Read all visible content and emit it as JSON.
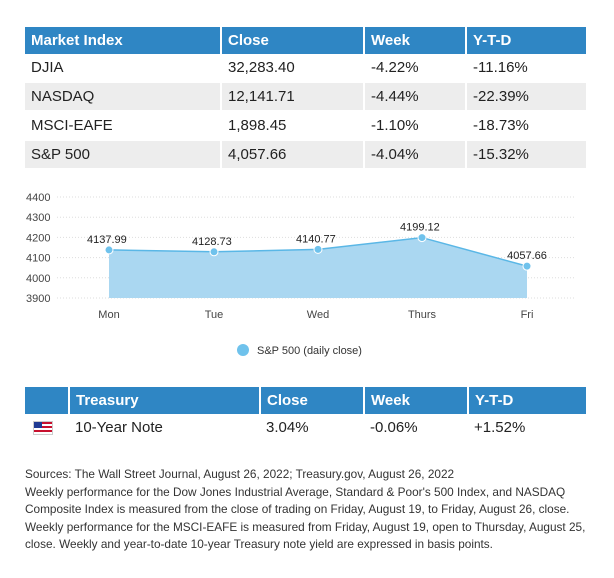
{
  "market_table": {
    "headers": [
      "Market Index",
      "Close",
      "Week",
      "Y-T-D"
    ],
    "rows": [
      [
        "DJIA",
        "32,283.40",
        "-4.22%",
        "-11.16%"
      ],
      [
        "NASDAQ",
        "12,141.71",
        "-4.44%",
        "-22.39%"
      ],
      [
        "MSCI-EAFE",
        "1,898.45",
        "-1.10%",
        "-18.73%"
      ],
      [
        "S&P 500",
        "4,057.66",
        "-4.04%",
        "-15.32%"
      ]
    ]
  },
  "chart_data": {
    "type": "area",
    "categories": [
      "Mon",
      "Tue",
      "Wed",
      "Thurs",
      "Fri"
    ],
    "series": [
      {
        "name": "S&P 500 (daily close)",
        "values": [
          4137.99,
          4128.73,
          4140.77,
          4199.12,
          4057.66
        ]
      }
    ],
    "data_labels": [
      "4137.99",
      "4128.73",
      "4140.77",
      "4199.12",
      "4057.66"
    ],
    "y_ticks": [
      3900,
      4000,
      4100,
      4200,
      4300,
      4400
    ],
    "ylim": [
      3900,
      4400
    ],
    "grid": true,
    "legend_position": "bottom-center",
    "colors": {
      "fill": "#aad7f1",
      "line": "#5ab7e6",
      "point": "#6fc2ec"
    }
  },
  "treasury_table": {
    "headers": [
      "Treasury",
      "Close",
      "Week",
      "Y-T-D"
    ],
    "row": {
      "flag": "us-flag-icon",
      "label": "10-Year Note",
      "close": "3.04%",
      "week": "-0.06%",
      "ytd": "+1.52%"
    }
  },
  "notes": [
    "Sources: The Wall Street Journal, August 26, 2022; Treasury.gov, August 26, 2022",
    "Weekly performance for the Dow Jones Industrial Average, Standard & Poor's 500 Index, and NASDAQ Composite Index is measured from the close of trading on Friday, August 19, to Friday, August 26, close. Weekly performance for the MSCI-EAFE is measured from Friday, August 19, open to Thursday, August 25, close. Weekly and year-to-date 10-year Treasury note yield are expressed in basis points."
  ],
  "colors": {
    "header_blue": "#2f86c4",
    "row_stripe": "#ededed"
  }
}
